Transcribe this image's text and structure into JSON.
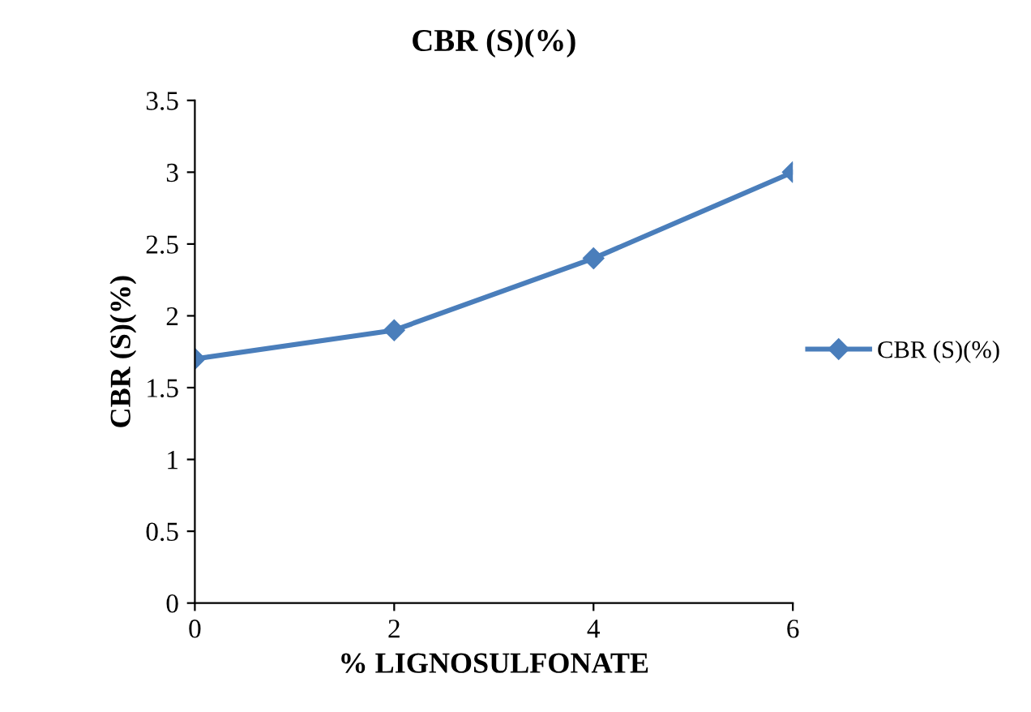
{
  "chart_data": {
    "type": "line",
    "title": "CBR (S)(%)",
    "xlabel": "% LIGNOSULFONATE",
    "ylabel": "CBR (S)(%)",
    "x": [
      0,
      2,
      4,
      6
    ],
    "series": [
      {
        "name": "CBR (S)(%)",
        "color": "#4a7ebb",
        "values": [
          1.7,
          1.9,
          2.4,
          3.0
        ]
      }
    ],
    "xlim": [
      0,
      6
    ],
    "xticks": [
      0,
      2,
      4,
      6
    ],
    "ylim": [
      0,
      3.5
    ],
    "yticks": [
      0,
      0.5,
      1,
      1.5,
      2,
      2.5,
      3,
      3.5
    ],
    "marker": "diamond",
    "line_style": "solid",
    "grid": false,
    "legend": "right"
  }
}
